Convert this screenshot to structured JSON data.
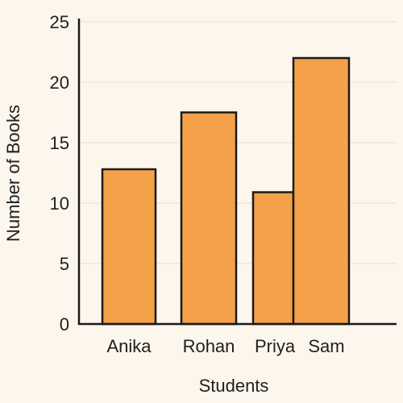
{
  "chart_data": {
    "type": "bar",
    "categories": [
      "Anika",
      "Rohan",
      "Priya",
      "Sam"
    ],
    "values": [
      12.8,
      17.5,
      10.9,
      22
    ],
    "xlabel": "Students",
    "ylabel": "Number of Books",
    "ylim": [
      0,
      25
    ],
    "yticks": [
      0,
      5,
      10,
      15,
      20,
      25
    ],
    "grid": true,
    "bar_color": "#f4a14a",
    "edge_color": "#1a1a1a"
  }
}
